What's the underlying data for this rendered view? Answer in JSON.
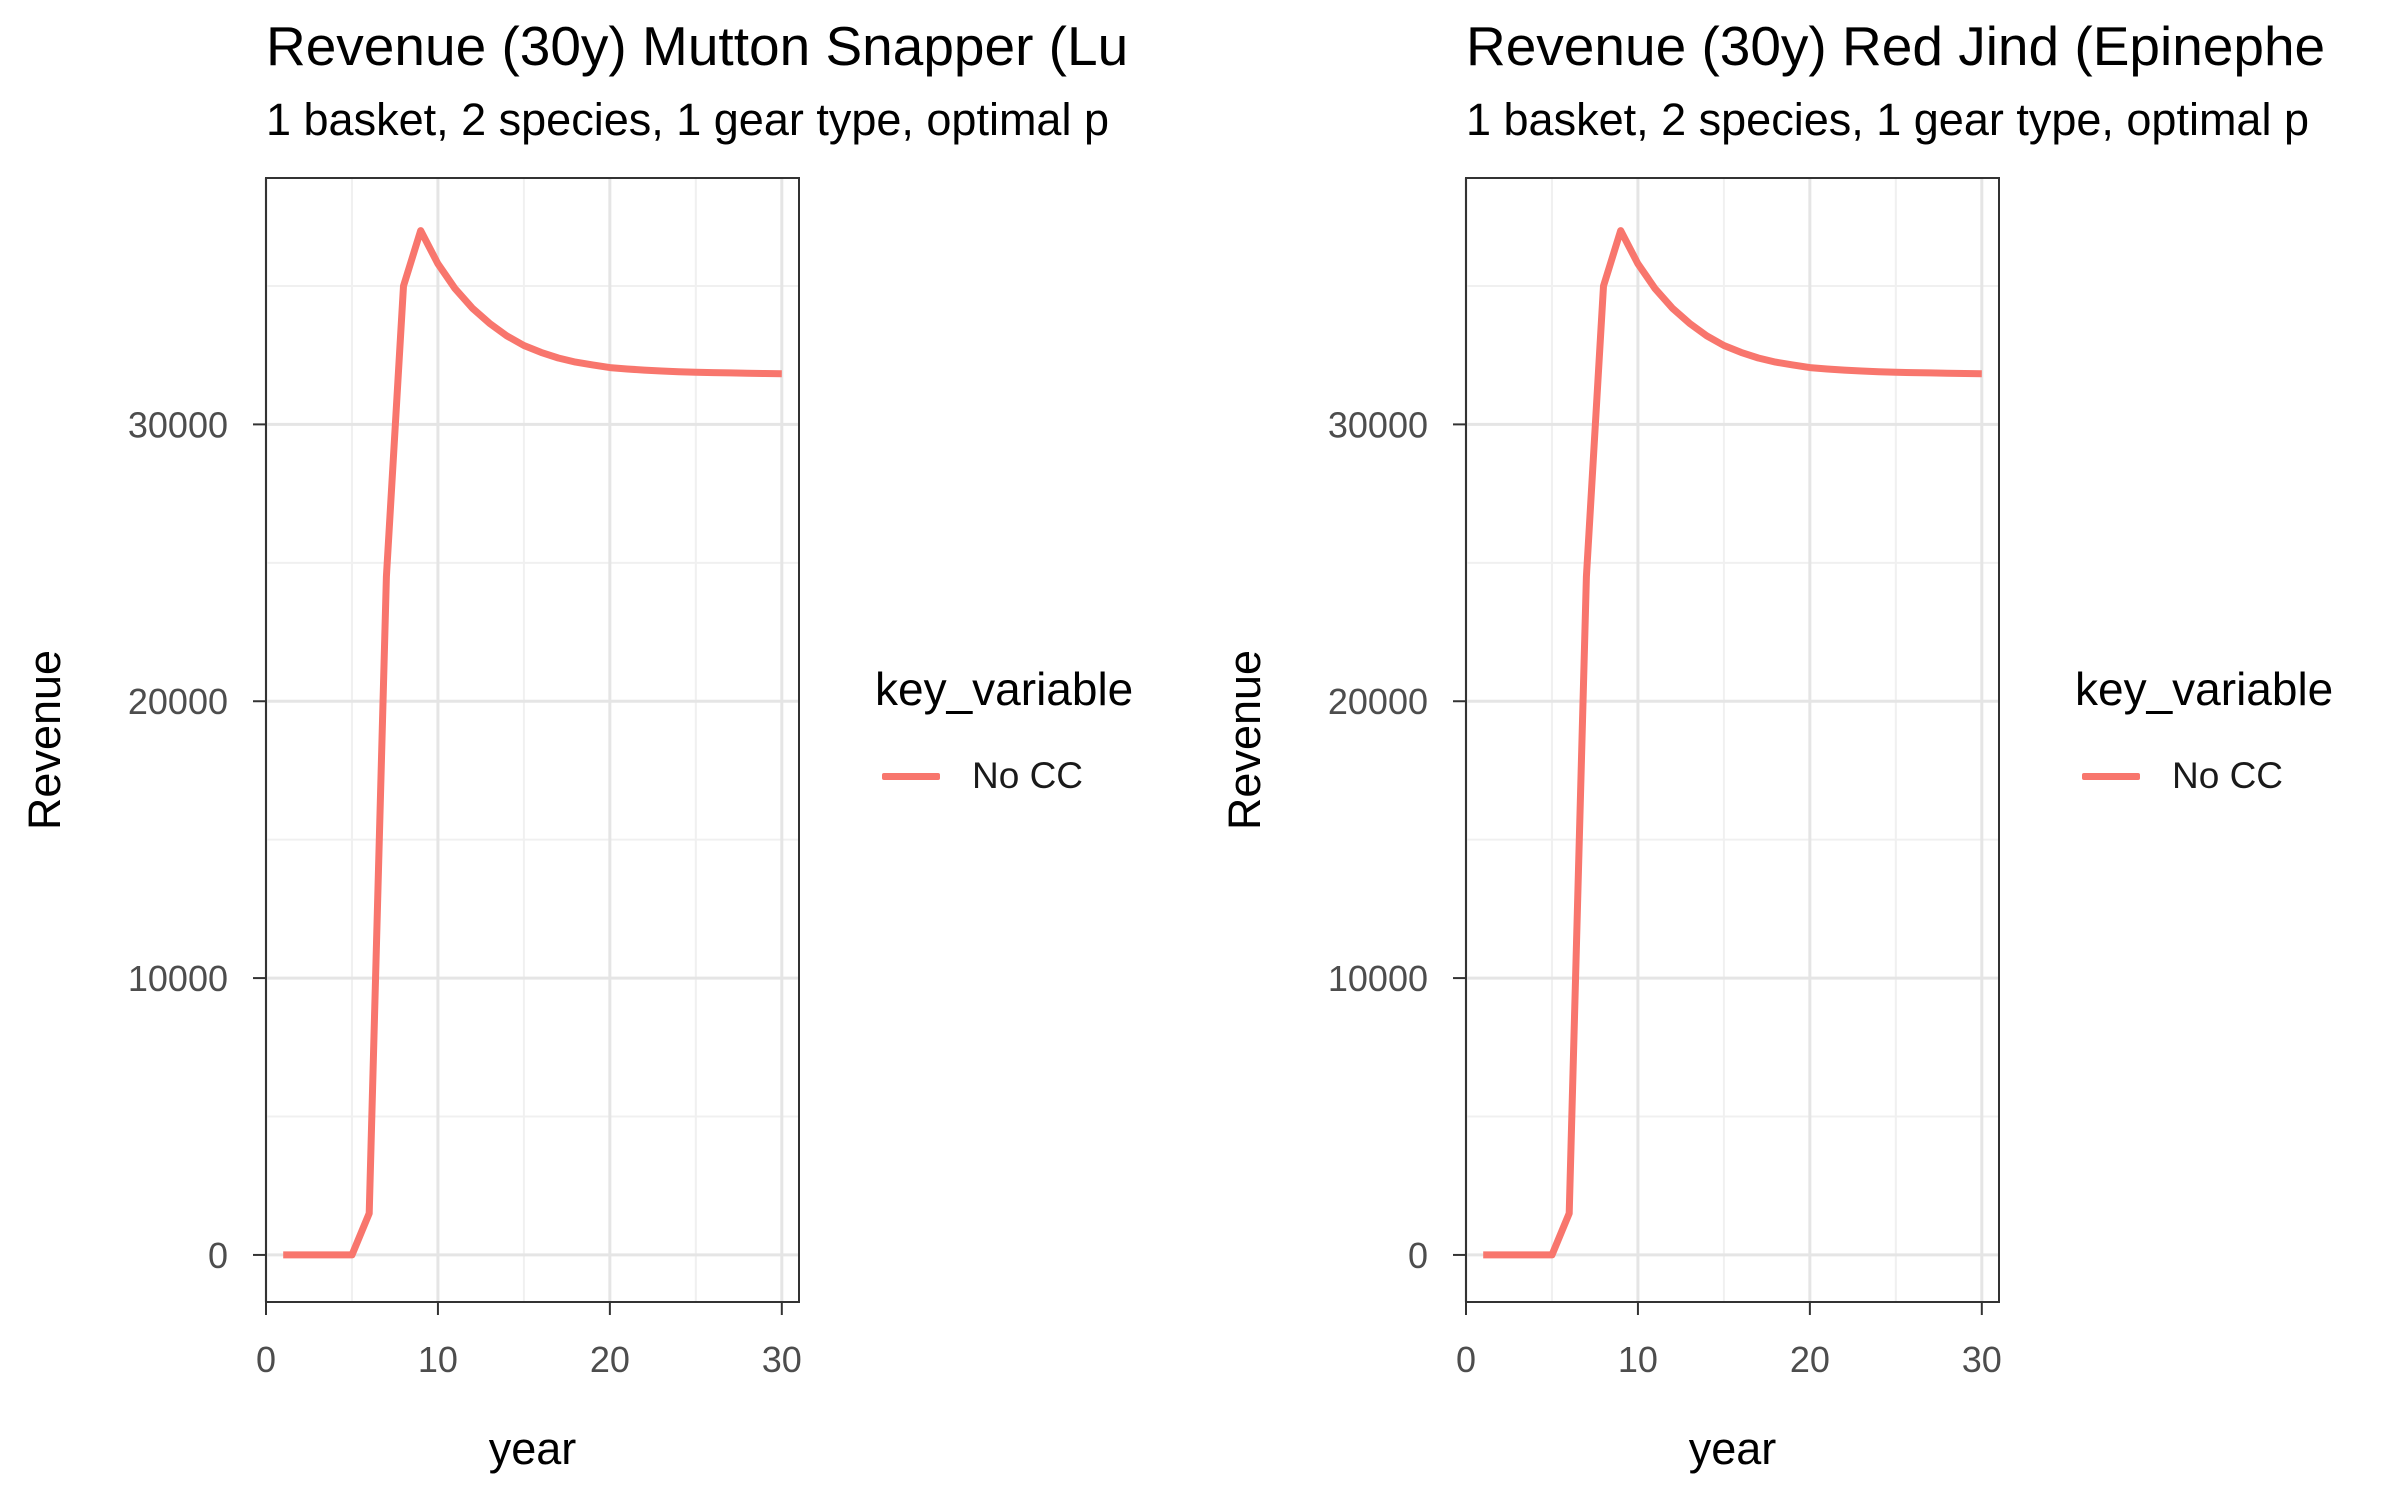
{
  "chart_data": [
    {
      "type": "line",
      "title": "Revenue (30y) Mutton Snapper (Lu",
      "subtitle": "1 basket, 2 species, 1 gear type, optimal p",
      "xlabel": "year",
      "ylabel": "Revenue",
      "xlim": [
        0,
        31
      ],
      "ylim": [
        -1700,
        38900
      ],
      "x_ticks": [
        0,
        10,
        20,
        30
      ],
      "y_ticks": [
        0,
        10000,
        20000,
        30000
      ],
      "grid": true,
      "legend_title": "key_variable",
      "legend_position": "right",
      "series": [
        {
          "name": "No CC",
          "color": "#F8766D",
          "x": [
            1,
            2,
            3,
            4,
            5,
            6,
            7,
            8,
            9,
            10,
            11,
            12,
            13,
            14,
            15,
            16,
            17,
            18,
            19,
            20,
            21,
            22,
            23,
            24,
            25,
            26,
            27,
            28,
            29,
            30
          ],
          "y": [
            0,
            0,
            0,
            0,
            0,
            1500,
            24500,
            35000,
            37000,
            35800,
            34900,
            34200,
            33650,
            33200,
            32850,
            32600,
            32400,
            32250,
            32150,
            32050,
            32000,
            31960,
            31930,
            31900,
            31880,
            31870,
            31860,
            31850,
            31840,
            31830
          ]
        }
      ]
    },
    {
      "type": "line",
      "title": "Revenue (30y) Red Jind (Epinephe",
      "subtitle": "1 basket, 2 species, 1 gear type, optimal p",
      "xlabel": "year",
      "ylabel": "Revenue",
      "xlim": [
        0,
        31
      ],
      "ylim": [
        -1700,
        38900
      ],
      "x_ticks": [
        0,
        10,
        20,
        30
      ],
      "y_ticks": [
        0,
        10000,
        20000,
        30000
      ],
      "grid": true,
      "legend_title": "key_variable",
      "legend_position": "right",
      "series": [
        {
          "name": "No CC",
          "color": "#F8766D",
          "x": [
            1,
            2,
            3,
            4,
            5,
            6,
            7,
            8,
            9,
            10,
            11,
            12,
            13,
            14,
            15,
            16,
            17,
            18,
            19,
            20,
            21,
            22,
            23,
            24,
            25,
            26,
            27,
            28,
            29,
            30
          ],
          "y": [
            0,
            0,
            0,
            0,
            0,
            1500,
            24500,
            35000,
            37000,
            35800,
            34900,
            34200,
            33650,
            33200,
            32850,
            32600,
            32400,
            32250,
            32150,
            32050,
            32000,
            31960,
            31930,
            31900,
            31880,
            31870,
            31860,
            31850,
            31840,
            31830
          ]
        }
      ]
    }
  ]
}
